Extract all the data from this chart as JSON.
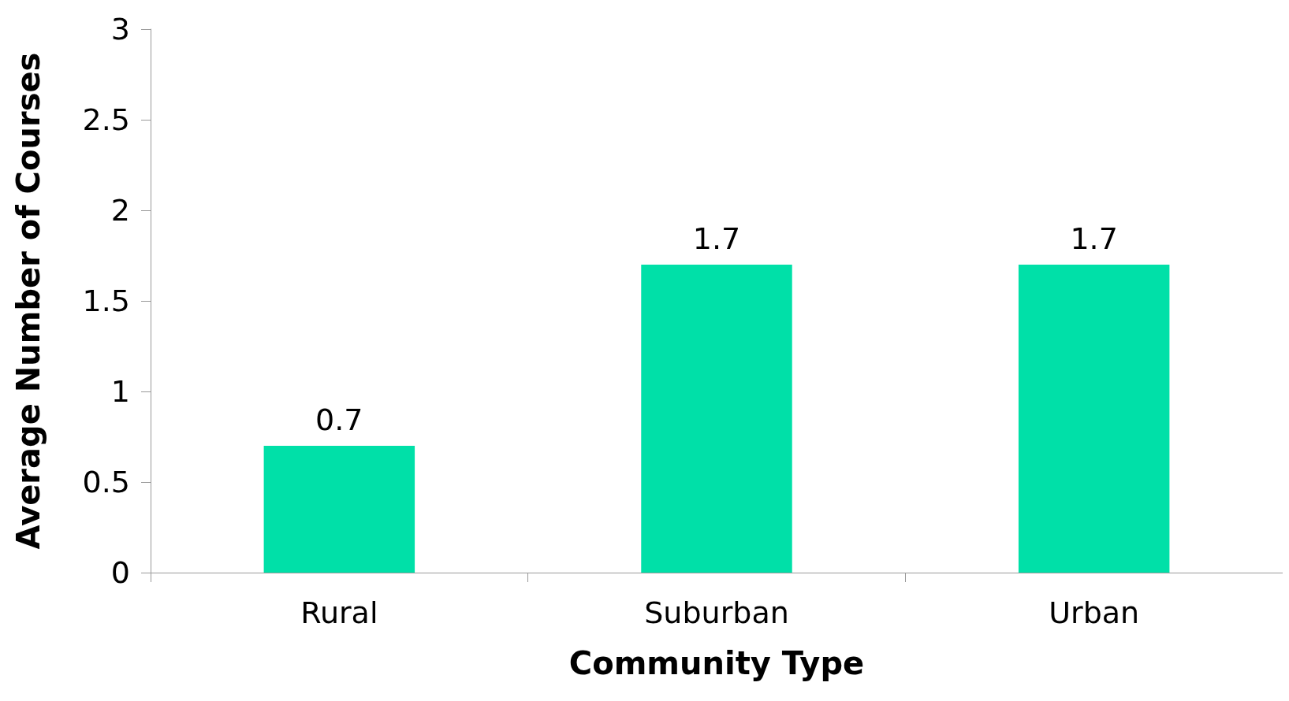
{
  "chart_data": {
    "type": "bar",
    "xlabel": "Community Type",
    "ylabel": "Average Number of Courses",
    "categories": [
      "Rural",
      "Suburban",
      "Urban"
    ],
    "values": [
      0.7,
      1.7,
      1.7
    ],
    "color": "#00e0a8",
    "ylim": [
      0,
      3
    ],
    "yticks": [
      0,
      0.5,
      1,
      1.5,
      2,
      2.5,
      3
    ],
    "data_labels": true,
    "grid": false
  }
}
